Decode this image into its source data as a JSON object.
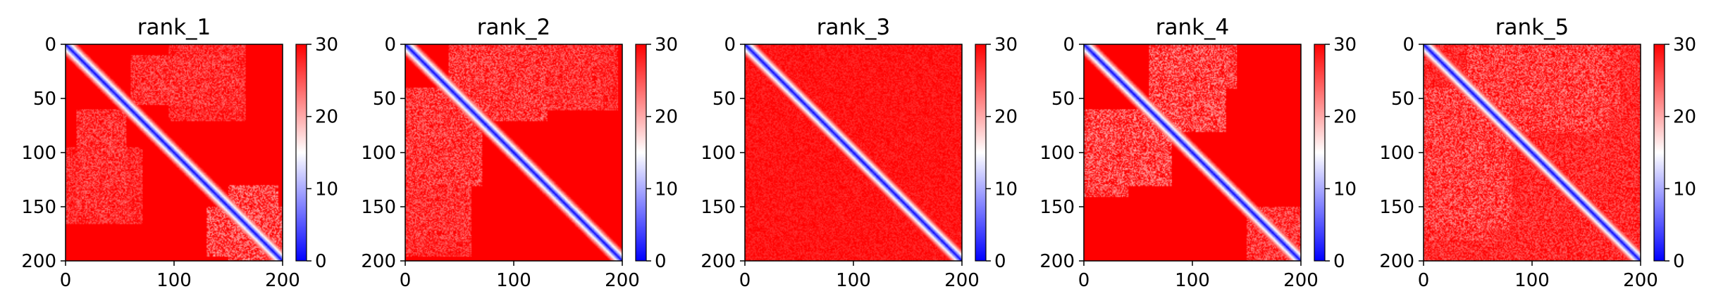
{
  "chart_data": [
    {
      "type": "heatmap",
      "title": "rank_1",
      "xlabel": "",
      "ylabel": "",
      "xlim": [
        0,
        200
      ],
      "ylim": [
        200,
        0
      ],
      "x_ticks": [
        "0",
        "100",
        "200"
      ],
      "y_ticks": [
        "0",
        "50",
        "100",
        "150",
        "200"
      ],
      "colorbar": {
        "range": [
          0,
          30
        ],
        "ticks": [
          "0",
          "10",
          "20",
          "30"
        ],
        "colormap": "bwr",
        "low_color": "#0000ff",
        "mid_color": "#ffffff",
        "high_color": "#ff0000"
      },
      "matrix_size": 200,
      "pattern": "symmetric distance-like matrix: 0 on the diagonal, rising to >=30 away from it",
      "light_regions": [
        {
          "rows": [
            60,
            160
          ],
          "cols": [
            10,
            55
          ],
          "min_value": 23
        },
        {
          "rows": [
            130,
            200
          ],
          "cols": [
            150,
            195
          ],
          "min_value": 20
        },
        {
          "rows": [
            0,
            70
          ],
          "cols": [
            95,
            165
          ],
          "min_value": 24
        }
      ]
    },
    {
      "type": "heatmap",
      "title": "rank_2",
      "xlabel": "",
      "ylabel": "",
      "xlim": [
        0,
        200
      ],
      "ylim": [
        200,
        0
      ],
      "x_ticks": [
        "0",
        "100",
        "200"
      ],
      "y_ticks": [
        "0",
        "50",
        "100",
        "150",
        "200"
      ],
      "colorbar": {
        "range": [
          0,
          30
        ],
        "ticks": [
          "0",
          "10",
          "20",
          "30"
        ],
        "colormap": "bwr",
        "low_color": "#0000ff",
        "mid_color": "#ffffff",
        "high_color": "#ff0000"
      },
      "matrix_size": 200,
      "pattern": "symmetric distance-like matrix: 0 on the diagonal, rising to >=30 away from it",
      "light_regions": [
        {
          "rows": [
            0,
            70
          ],
          "cols": [
            40,
            130
          ],
          "min_value": 22
        },
        {
          "rows": [
            90,
            180
          ],
          "cols": [
            0,
            60
          ],
          "min_value": 23
        },
        {
          "rows": [
            0,
            60
          ],
          "cols": [
            150,
            195
          ],
          "min_value": 24
        }
      ]
    },
    {
      "type": "heatmap",
      "title": "rank_3",
      "xlabel": "",
      "ylabel": "",
      "xlim": [
        0,
        200
      ],
      "ylim": [
        200,
        0
      ],
      "x_ticks": [
        "0",
        "100",
        "200"
      ],
      "y_ticks": [
        "0",
        "50",
        "100",
        "150",
        "200"
      ],
      "colorbar": {
        "range": [
          0,
          30
        ],
        "ticks": [
          "0",
          "10",
          "20",
          "30"
        ],
        "colormap": "bwr",
        "low_color": "#0000ff",
        "mid_color": "#ffffff",
        "high_color": "#ff0000"
      },
      "matrix_size": 200,
      "pattern": "symmetric distance-like matrix: 0 on the diagonal, rising to >=30 away from it",
      "light_regions": [
        {
          "rows": [
            0,
            200
          ],
          "cols": [
            0,
            200
          ],
          "min_value": 27
        }
      ]
    },
    {
      "type": "heatmap",
      "title": "rank_4",
      "xlabel": "",
      "ylabel": "",
      "xlim": [
        0,
        200
      ],
      "ylim": [
        200,
        0
      ],
      "x_ticks": [
        "0",
        "100",
        "200"
      ],
      "y_ticks": [
        "0",
        "50",
        "100",
        "150",
        "200"
      ],
      "colorbar": {
        "range": [
          0,
          30
        ],
        "ticks": [
          "0",
          "10",
          "20",
          "30"
        ],
        "colormap": "bwr",
        "low_color": "#0000ff",
        "mid_color": "#ffffff",
        "high_color": "#ff0000"
      },
      "matrix_size": 200,
      "pattern": "symmetric distance-like matrix: 0 on the diagonal, rising to >=30 away from it",
      "light_regions": [
        {
          "rows": [
            0,
            80
          ],
          "cols": [
            60,
            130
          ],
          "min_value": 20
        },
        {
          "rows": [
            60,
            140
          ],
          "cols": [
            0,
            40
          ],
          "min_value": 21
        },
        {
          "rows": [
            150,
            200
          ],
          "cols": [
            150,
            200
          ],
          "min_value": 22
        }
      ]
    },
    {
      "type": "heatmap",
      "title": "rank_5",
      "xlabel": "",
      "ylabel": "",
      "xlim": [
        0,
        200
      ],
      "ylim": [
        200,
        0
      ],
      "x_ticks": [
        "0",
        "100",
        "200"
      ],
      "y_ticks": [
        "0",
        "50",
        "100",
        "150",
        "200"
      ],
      "colorbar": {
        "range": [
          0,
          30
        ],
        "ticks": [
          "0",
          "10",
          "20",
          "30"
        ],
        "colormap": "bwr",
        "low_color": "#0000ff",
        "mid_color": "#ffffff",
        "high_color": "#ff0000"
      },
      "matrix_size": 200,
      "pattern": "symmetric distance-like matrix: 0 on the diagonal, rising to >=30 away from it",
      "light_regions": [
        {
          "rows": [
            0,
            200
          ],
          "cols": [
            0,
            200
          ],
          "min_value": 24
        },
        {
          "rows": [
            40,
            170
          ],
          "cols": [
            0,
            80
          ],
          "min_value": 21
        },
        {
          "rows": [
            0,
            60
          ],
          "cols": [
            100,
            180
          ],
          "min_value": 22
        }
      ]
    }
  ]
}
